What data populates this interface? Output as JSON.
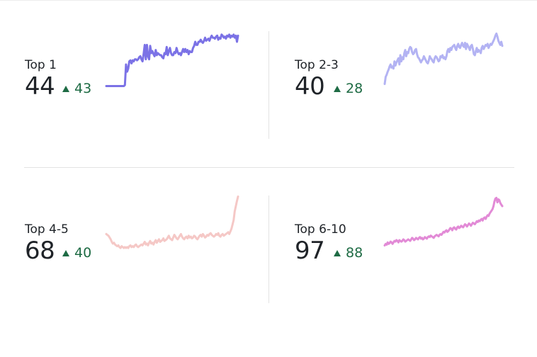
{
  "chart_data": [
    {
      "type": "line",
      "label": "Top 1",
      "value": "44",
      "delta": "43",
      "color": "#7b72e6",
      "x": [
        0,
        1,
        2,
        3,
        4,
        5,
        6,
        7,
        8,
        9,
        10,
        11,
        12,
        13,
        14,
        15,
        16,
        17,
        18,
        19,
        20,
        21,
        22,
        23,
        24,
        25,
        26,
        27,
        28,
        29,
        30,
        31,
        32,
        33,
        34,
        35,
        36,
        37,
        38,
        39,
        40,
        41,
        42,
        43,
        44,
        45,
        46,
        47,
        48,
        49,
        50,
        51,
        52,
        53,
        54,
        55,
        56,
        57,
        58,
        59,
        60,
        61,
        62,
        63,
        64,
        65,
        66,
        67,
        68,
        69,
        70,
        71,
        72,
        73,
        74,
        75,
        76,
        77,
        78,
        79,
        80,
        81,
        82,
        83,
        84,
        85,
        86,
        87,
        88,
        89,
        90,
        91,
        92,
        93,
        94,
        95,
        96,
        97,
        98,
        99,
        100,
        101,
        102,
        103,
        104,
        105,
        106,
        107,
        108,
        109,
        110,
        111,
        112,
        113,
        114,
        115,
        116,
        117,
        118,
        119,
        120
      ],
      "values": [
        1,
        1,
        1,
        1,
        1,
        1,
        1,
        1,
        1,
        1,
        1,
        1,
        1,
        1,
        1,
        1,
        1,
        2,
        22,
        15,
        18,
        25,
        26,
        23,
        26,
        25,
        27,
        27,
        26,
        27,
        29,
        30,
        27,
        25,
        32,
        41,
        27,
        41,
        30,
        27,
        40,
        33,
        35,
        32,
        30,
        36,
        31,
        33,
        32,
        31,
        31,
        29,
        28,
        33,
        32,
        39,
        31,
        35,
        38,
        33,
        31,
        31,
        34,
        33,
        38,
        34,
        32,
        33,
        31,
        34,
        37,
        34,
        37,
        34,
        36,
        32,
        35,
        34,
        34,
        38,
        40,
        44,
        41,
        41,
        44,
        44,
        46,
        44,
        43,
        45,
        48,
        45,
        46,
        47,
        45,
        48,
        50,
        48,
        48,
        47,
        49,
        50,
        46,
        48,
        47,
        51,
        50,
        48,
        49,
        47,
        50,
        49,
        51,
        48,
        50,
        49,
        51,
        48,
        50,
        44,
        50
      ],
      "ylim": [
        0,
        55
      ]
    },
    {
      "type": "line",
      "label": "Top 2-3",
      "value": "40",
      "delta": "28",
      "color": "#b3b3f3",
      "x": [
        0,
        1,
        2,
        3,
        4,
        5,
        6,
        7,
        8,
        9,
        10,
        11,
        12,
        13,
        14,
        15,
        16,
        17,
        18,
        19,
        20,
        21,
        22,
        23,
        24,
        25,
        26,
        27,
        28,
        29,
        30,
        31,
        32,
        33,
        34,
        35,
        36,
        37,
        38,
        39,
        40,
        41,
        42,
        43,
        44,
        45,
        46,
        47,
        48,
        49,
        50,
        51,
        52,
        53,
        54,
        55,
        56,
        57,
        58,
        59,
        60,
        61,
        62,
        63,
        64,
        65,
        66,
        67,
        68,
        69,
        70,
        71,
        72,
        73,
        74,
        75,
        76,
        77,
        78,
        79,
        80,
        81,
        82,
        83,
        84,
        85,
        86,
        87,
        88,
        89,
        90,
        91,
        92,
        93,
        94,
        95,
        96,
        97,
        98,
        99,
        100,
        101,
        102,
        103,
        104,
        105,
        106,
        107,
        108,
        109,
        110,
        111,
        112,
        113,
        114,
        115,
        116,
        117,
        118,
        119,
        120
      ],
      "values": [
        3,
        10,
        12,
        15,
        17,
        20,
        22,
        19,
        20,
        18,
        25,
        21,
        24,
        26,
        28,
        22,
        31,
        25,
        29,
        27,
        33,
        36,
        30,
        34,
        33,
        37,
        39,
        38,
        34,
        32,
        33,
        36,
        37,
        32,
        29,
        28,
        26,
        24,
        26,
        27,
        30,
        28,
        26,
        24,
        23,
        26,
        30,
        28,
        27,
        25,
        24,
        28,
        30,
        29,
        27,
        25,
        26,
        30,
        29,
        31,
        28,
        29,
        27,
        30,
        35,
        37,
        34,
        38,
        36,
        39,
        40,
        41,
        38,
        36,
        40,
        42,
        39,
        38,
        41,
        43,
        40,
        39,
        43,
        37,
        42,
        40,
        38,
        36,
        40,
        41,
        37,
        32,
        31,
        35,
        38,
        34,
        36,
        35,
        33,
        38,
        40,
        37,
        39,
        41,
        40,
        42,
        38,
        40,
        42,
        41,
        43,
        45,
        47,
        50,
        52,
        49,
        45,
        43,
        41,
        44,
        40
      ],
      "ylim": [
        0,
        55
      ]
    },
    {
      "type": "line",
      "label": "Top 4-5",
      "value": "68",
      "delta": "40",
      "color": "#f5c8c6",
      "x": [
        0,
        1,
        2,
        3,
        4,
        5,
        6,
        7,
        8,
        9,
        10,
        11,
        12,
        13,
        14,
        15,
        16,
        17,
        18,
        19,
        20,
        21,
        22,
        23,
        24,
        25,
        26,
        27,
        28,
        29,
        30,
        31,
        32,
        33,
        34,
        35,
        36,
        37,
        38,
        39,
        40,
        41,
        42,
        43,
        44,
        45,
        46,
        47,
        48,
        49,
        50,
        51,
        52,
        53,
        54,
        55,
        56,
        57,
        58,
        59,
        60,
        61,
        62,
        63,
        64,
        65,
        66,
        67,
        68,
        69,
        70,
        71,
        72,
        73,
        74,
        75,
        76,
        77,
        78,
        79,
        80,
        81,
        82,
        83,
        84,
        85,
        86,
        87,
        88,
        89,
        90,
        91,
        92,
        93,
        94,
        95,
        96,
        97,
        98,
        99,
        100,
        101,
        102,
        103,
        104,
        105,
        106,
        107,
        108,
        109,
        110,
        111,
        112,
        113,
        114,
        115,
        116,
        117,
        118,
        119,
        120
      ],
      "values": [
        20,
        19,
        18,
        16,
        14,
        11,
        9,
        10,
        8,
        7,
        6,
        7,
        5,
        4,
        6,
        5,
        4,
        5,
        4,
        5,
        4,
        6,
        7,
        5,
        6,
        5,
        7,
        8,
        6,
        5,
        6,
        7,
        8,
        7,
        9,
        11,
        8,
        9,
        7,
        10,
        12,
        9,
        10,
        8,
        11,
        13,
        10,
        12,
        14,
        11,
        12,
        13,
        15,
        12,
        13,
        14,
        16,
        18,
        15,
        14,
        13,
        16,
        19,
        17,
        15,
        14,
        16,
        18,
        20,
        17,
        15,
        14,
        16,
        17,
        15,
        18,
        16,
        17,
        15,
        16,
        18,
        17,
        15,
        14,
        16,
        18,
        19,
        17,
        20,
        18,
        16,
        17,
        19,
        18,
        20,
        21,
        19,
        18,
        17,
        18,
        20,
        19,
        21,
        18,
        17,
        19,
        20,
        18,
        19,
        20,
        21,
        22,
        20,
        23,
        26,
        31,
        36,
        46,
        52,
        58,
        63
      ],
      "ylim": [
        0,
        65
      ]
    },
    {
      "type": "line",
      "label": "Top 6-10",
      "value": "97",
      "delta": "88",
      "color": "#e28ad6",
      "x": [
        0,
        1,
        2,
        3,
        4,
        5,
        6,
        7,
        8,
        9,
        10,
        11,
        12,
        13,
        14,
        15,
        16,
        17,
        18,
        19,
        20,
        21,
        22,
        23,
        24,
        25,
        26,
        27,
        28,
        29,
        30,
        31,
        32,
        33,
        34,
        35,
        36,
        37,
        38,
        39,
        40,
        41,
        42,
        43,
        44,
        45,
        46,
        47,
        48,
        49,
        50,
        51,
        52,
        53,
        54,
        55,
        56,
        57,
        58,
        59,
        60,
        61,
        62,
        63,
        64,
        65,
        66,
        67,
        68,
        69,
        70,
        71,
        72,
        73,
        74,
        75,
        76,
        77,
        78,
        79,
        80,
        81,
        82,
        83,
        84,
        85,
        86,
        87,
        88,
        89,
        90,
        91,
        92,
        93,
        94,
        95,
        96,
        97,
        98,
        99,
        100,
        101,
        102,
        103,
        104,
        105,
        106,
        107,
        108,
        109,
        110,
        111,
        112,
        113,
        114,
        115,
        116,
        117,
        118,
        119,
        120
      ],
      "values": [
        8,
        10,
        9,
        12,
        10,
        11,
        13,
        12,
        10,
        12,
        14,
        13,
        15,
        14,
        12,
        15,
        14,
        13,
        14,
        16,
        15,
        13,
        14,
        15,
        16,
        15,
        14,
        16,
        18,
        17,
        15,
        16,
        18,
        17,
        16,
        18,
        19,
        17,
        18,
        16,
        17,
        19,
        18,
        17,
        19,
        20,
        19,
        21,
        20,
        19,
        18,
        20,
        21,
        22,
        21,
        20,
        22,
        23,
        22,
        24,
        26,
        25,
        27,
        28,
        26,
        27,
        29,
        31,
        30,
        28,
        31,
        32,
        30,
        29,
        32,
        33,
        31,
        32,
        34,
        33,
        32,
        34,
        36,
        35,
        33,
        35,
        37,
        36,
        34,
        36,
        38,
        37,
        36,
        38,
        40,
        39,
        41,
        40,
        42,
        43,
        41,
        44,
        45,
        43,
        46,
        48,
        47,
        50,
        52,
        54,
        56,
        60,
        66,
        70,
        71,
        65,
        69,
        68,
        64,
        62,
        60
      ],
      "ylim": [
        0,
        75
      ]
    }
  ]
}
